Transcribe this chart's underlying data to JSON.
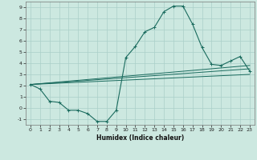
{
  "title": "",
  "xlabel": "Humidex (Indice chaleur)",
  "ylabel": "",
  "xlim": [
    -0.5,
    23.5
  ],
  "ylim": [
    -1.5,
    9.5
  ],
  "xticks": [
    0,
    1,
    2,
    3,
    4,
    5,
    6,
    7,
    8,
    9,
    10,
    11,
    12,
    13,
    14,
    15,
    16,
    17,
    18,
    19,
    20,
    21,
    22,
    23
  ],
  "yticks": [
    -1,
    0,
    1,
    2,
    3,
    4,
    5,
    6,
    7,
    8,
    9
  ],
  "bg_color": "#cce8e0",
  "line_color": "#1a6b5e",
  "grid_color": "#aacfc8",
  "main_x": [
    0,
    1,
    2,
    3,
    4,
    5,
    6,
    7,
    8,
    9,
    10,
    11,
    12,
    13,
    14,
    15,
    16,
    17,
    18,
    19,
    20,
    21,
    22,
    23
  ],
  "main_y": [
    2.1,
    1.7,
    0.6,
    0.5,
    -0.2,
    -0.2,
    -0.5,
    -1.2,
    -1.2,
    -0.2,
    4.5,
    5.5,
    6.8,
    7.2,
    8.6,
    9.1,
    9.1,
    7.5,
    5.4,
    3.9,
    3.8,
    4.2,
    4.6,
    3.3
  ],
  "trend1_x": [
    0,
    23
  ],
  "trend1_y": [
    2.1,
    3.0
  ],
  "trend2_x": [
    0,
    23
  ],
  "trend2_y": [
    2.1,
    3.5
  ],
  "trend3_x": [
    0,
    23
  ],
  "trend3_y": [
    2.1,
    3.8
  ]
}
